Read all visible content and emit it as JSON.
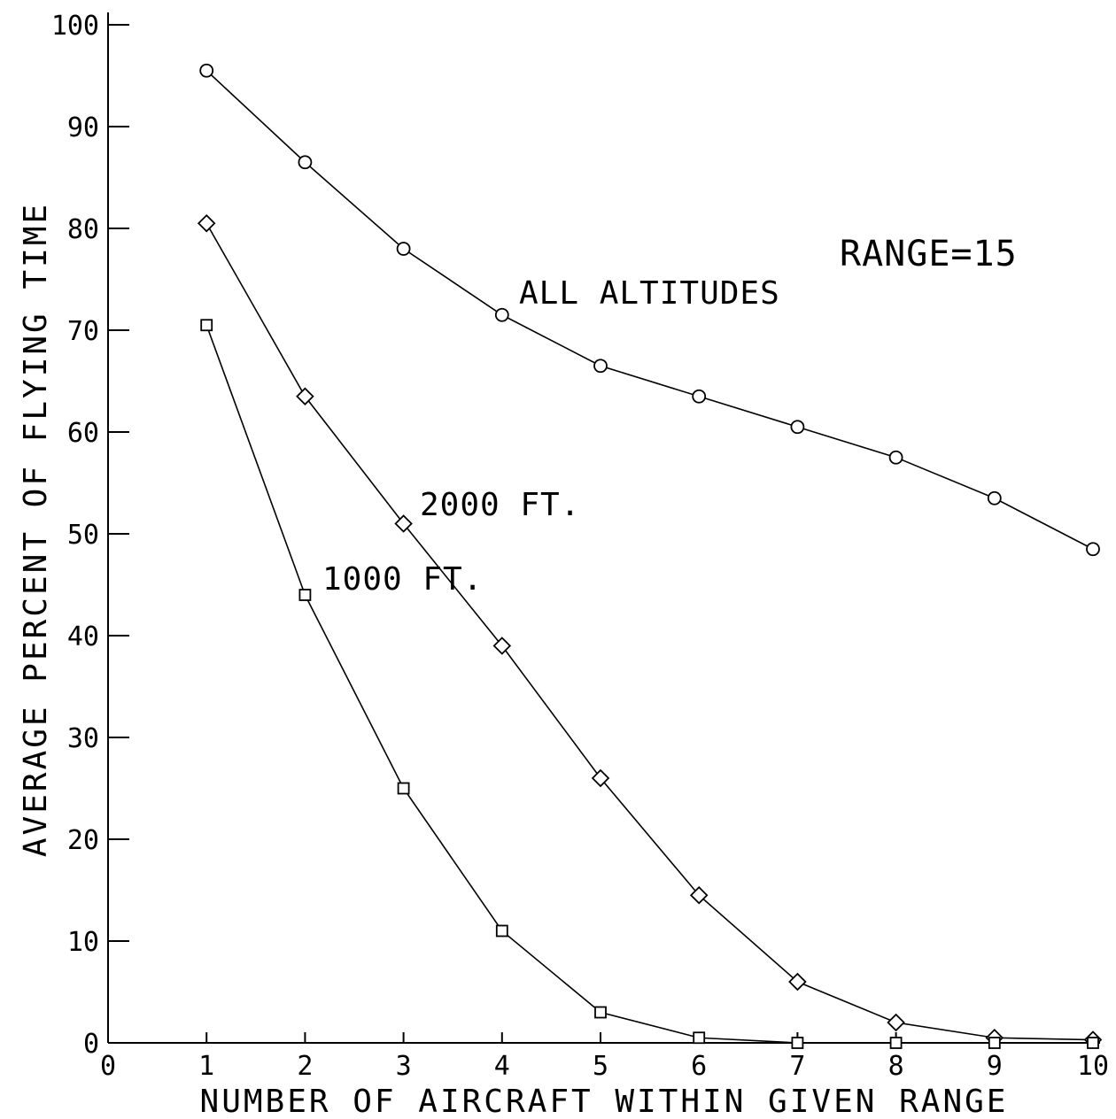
{
  "chart_data": {
    "type": "line",
    "xlabel": "NUMBER OF AIRCRAFT WITHIN GIVEN RANGE",
    "ylabel": "AVERAGE PERCENT OF FLYING TIME",
    "xlim": [
      0,
      10
    ],
    "ylim": [
      0,
      100
    ],
    "x_ticks": [
      "0",
      "1",
      "2",
      "3",
      "4",
      "5",
      "6",
      "7",
      "8",
      "9",
      "10"
    ],
    "y_ticks": [
      "0",
      "10",
      "20",
      "30",
      "40",
      "50",
      "60",
      "70",
      "80",
      "90",
      "100"
    ],
    "grid": false,
    "x": [
      1,
      2,
      3,
      4,
      5,
      6,
      7,
      8,
      9,
      10
    ],
    "series": [
      {
        "name": "ALL ALTITUDES",
        "marker": "circle",
        "values": [
          95.5,
          86.5,
          78,
          71.5,
          66.5,
          63.5,
          60.5,
          57.5,
          53.5,
          48.5
        ]
      },
      {
        "name": "2000 FT.",
        "marker": "diamond",
        "values": [
          80.5,
          63.5,
          51,
          39,
          26,
          14.5,
          6,
          2,
          0.5,
          0.3
        ]
      },
      {
        "name": "1000 FT.",
        "marker": "square",
        "values": [
          70.5,
          44,
          25,
          11,
          3,
          0.5,
          0,
          0,
          0,
          0
        ]
      }
    ],
    "annotations": [
      {
        "text": "RANGE=15"
      }
    ]
  }
}
